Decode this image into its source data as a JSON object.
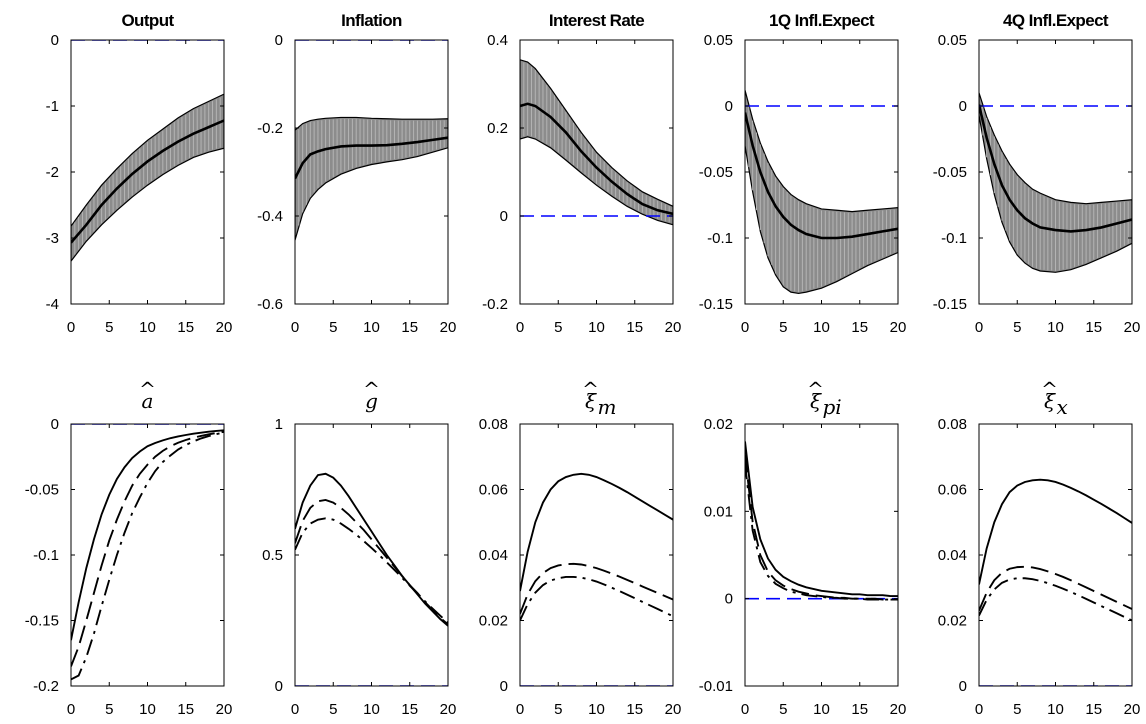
{
  "colors": {
    "band": "#8c8c8c",
    "median": "#000000",
    "zero_line": "#0000ff",
    "background": "#ffffff"
  },
  "chart_data": [
    {
      "type": "area",
      "title": "Output",
      "xlabel": "",
      "ylabel": "",
      "xlim": [
        0,
        20
      ],
      "ylim": [
        -4,
        0
      ],
      "xticks": [
        "0",
        "5",
        "10",
        "15",
        "20"
      ],
      "yticks": [
        "-4",
        "-3",
        "-2",
        "-1",
        "0"
      ],
      "zero_line": true,
      "grid": false,
      "x": [
        0,
        2,
        4,
        6,
        8,
        10,
        12,
        14,
        16,
        18,
        20
      ],
      "band_lower": [
        -3.35,
        -3.05,
        -2.8,
        -2.58,
        -2.38,
        -2.2,
        -2.04,
        -1.9,
        -1.78,
        -1.7,
        -1.64
      ],
      "band_upper": [
        -2.82,
        -2.5,
        -2.2,
        -1.95,
        -1.72,
        -1.52,
        -1.35,
        -1.18,
        -1.04,
        -0.93,
        -0.82
      ],
      "median": [
        -3.07,
        -2.8,
        -2.5,
        -2.25,
        -2.03,
        -1.84,
        -1.68,
        -1.54,
        -1.42,
        -1.32,
        -1.22
      ]
    },
    {
      "type": "area",
      "title": "Inflation",
      "xlabel": "",
      "ylabel": "",
      "xlim": [
        0,
        20
      ],
      "ylim": [
        -0.6,
        0
      ],
      "xticks": [
        "0",
        "5",
        "10",
        "15",
        "20"
      ],
      "yticks": [
        "-0.6",
        "-0.4",
        "-0.2",
        "0"
      ],
      "zero_line": true,
      "grid": false,
      "x": [
        0,
        1,
        2,
        3,
        4,
        6,
        8,
        10,
        12,
        14,
        16,
        18,
        20
      ],
      "band_lower": [
        -0.455,
        -0.395,
        -0.36,
        -0.34,
        -0.325,
        -0.305,
        -0.292,
        -0.283,
        -0.277,
        -0.272,
        -0.265,
        -0.255,
        -0.245
      ],
      "band_upper": [
        -0.205,
        -0.19,
        -0.183,
        -0.18,
        -0.178,
        -0.176,
        -0.176,
        -0.178,
        -0.179,
        -0.18,
        -0.18,
        -0.18,
        -0.179
      ],
      "median": [
        -0.315,
        -0.28,
        -0.26,
        -0.253,
        -0.248,
        -0.242,
        -0.24,
        -0.24,
        -0.239,
        -0.236,
        -0.232,
        -0.227,
        -0.222
      ]
    },
    {
      "type": "area",
      "title": "Interest Rate",
      "xlabel": "",
      "ylabel": "",
      "xlim": [
        0,
        20
      ],
      "ylim": [
        -0.2,
        0.4
      ],
      "xticks": [
        "0",
        "5",
        "10",
        "15",
        "20"
      ],
      "yticks": [
        "-0.2",
        "0",
        "0.2",
        "0.4"
      ],
      "zero_line": true,
      "grid": false,
      "x": [
        0,
        1,
        2,
        4,
        6,
        8,
        10,
        12,
        14,
        16,
        18,
        20
      ],
      "band_lower": [
        0.175,
        0.18,
        0.175,
        0.155,
        0.127,
        0.098,
        0.07,
        0.045,
        0.022,
        0.004,
        -0.01,
        -0.02
      ],
      "band_upper": [
        0.355,
        0.35,
        0.335,
        0.29,
        0.24,
        0.19,
        0.145,
        0.11,
        0.08,
        0.055,
        0.038,
        0.022
      ],
      "median": [
        0.25,
        0.255,
        0.25,
        0.225,
        0.19,
        0.147,
        0.11,
        0.078,
        0.05,
        0.027,
        0.013,
        0.005
      ]
    },
    {
      "type": "area",
      "title": "1Q Infl.Expect",
      "xlabel": "",
      "ylabel": "",
      "xlim": [
        0,
        20
      ],
      "ylim": [
        -0.15,
        0.05
      ],
      "xticks": [
        "0",
        "5",
        "10",
        "15",
        "20"
      ],
      "yticks": [
        "-0.15",
        "-0.1",
        "-0.05",
        "0",
        "0.05"
      ],
      "zero_line": true,
      "grid": false,
      "x": [
        0,
        1,
        2,
        3,
        4,
        5,
        6,
        7,
        8,
        10,
        12,
        14,
        16,
        18,
        20
      ],
      "band_lower": [
        -0.03,
        -0.065,
        -0.095,
        -0.115,
        -0.128,
        -0.137,
        -0.141,
        -0.142,
        -0.141,
        -0.138,
        -0.133,
        -0.127,
        -0.121,
        -0.116,
        -0.111
      ],
      "band_upper": [
        0.012,
        -0.01,
        -0.028,
        -0.042,
        -0.053,
        -0.061,
        -0.067,
        -0.071,
        -0.074,
        -0.078,
        -0.079,
        -0.08,
        -0.079,
        -0.078,
        -0.077
      ],
      "median": [
        -0.005,
        -0.03,
        -0.05,
        -0.065,
        -0.076,
        -0.084,
        -0.09,
        -0.094,
        -0.097,
        -0.1,
        -0.1,
        -0.099,
        -0.097,
        -0.095,
        -0.093
      ]
    },
    {
      "type": "area",
      "title": "4Q Infl.Expect",
      "xlabel": "",
      "ylabel": "",
      "xlim": [
        0,
        20
      ],
      "ylim": [
        -0.15,
        0.05
      ],
      "xticks": [
        "0",
        "5",
        "10",
        "15",
        "20"
      ],
      "yticks": [
        "-0.15",
        "-0.1",
        "-0.05",
        "0",
        "0.05"
      ],
      "zero_line": true,
      "grid": false,
      "x": [
        0,
        1,
        2,
        3,
        4,
        5,
        6,
        7,
        8,
        10,
        12,
        14,
        16,
        18,
        20
      ],
      "band_lower": [
        -0.007,
        -0.04,
        -0.067,
        -0.088,
        -0.103,
        -0.113,
        -0.119,
        -0.123,
        -0.125,
        -0.126,
        -0.124,
        -0.12,
        -0.115,
        -0.11,
        -0.104
      ],
      "band_upper": [
        0.01,
        -0.008,
        -0.022,
        -0.034,
        -0.044,
        -0.052,
        -0.058,
        -0.063,
        -0.066,
        -0.071,
        -0.073,
        -0.074,
        -0.073,
        -0.072,
        -0.071
      ],
      "median": [
        0.001,
        -0.024,
        -0.044,
        -0.06,
        -0.071,
        -0.079,
        -0.085,
        -0.089,
        -0.092,
        -0.094,
        -0.095,
        -0.094,
        -0.092,
        -0.089,
        -0.086
      ]
    },
    {
      "type": "line",
      "title": "a",
      "title_hat": true,
      "title_sub": "",
      "xlabel": "",
      "ylabel": "",
      "xlim": [
        0,
        20
      ],
      "ylim": [
        -0.2,
        0
      ],
      "xticks": [
        "0",
        "5",
        "10",
        "15",
        "20"
      ],
      "yticks": [
        "-0.2",
        "-0.15",
        "-0.1",
        "-0.05",
        "0"
      ],
      "zero_line": true,
      "grid": false,
      "x": [
        0,
        1,
        2,
        3,
        4,
        5,
        6,
        7,
        8,
        9,
        10,
        11,
        12,
        13,
        14,
        15,
        16,
        17,
        18,
        19,
        20
      ],
      "series": [
        {
          "style": "solid",
          "values": [
            -0.165,
            -0.136,
            -0.11,
            -0.088,
            -0.069,
            -0.054,
            -0.042,
            -0.033,
            -0.026,
            -0.021,
            -0.017,
            -0.0145,
            -0.0125,
            -0.0108,
            -0.0095,
            -0.0084,
            -0.0074,
            -0.0066,
            -0.0059,
            -0.0053,
            -0.0048
          ]
        },
        {
          "style": "dashed",
          "values": [
            -0.185,
            -0.17,
            -0.15,
            -0.129,
            -0.108,
            -0.089,
            -0.073,
            -0.059,
            -0.047,
            -0.038,
            -0.031,
            -0.025,
            -0.0205,
            -0.017,
            -0.0143,
            -0.0122,
            -0.0105,
            -0.0091,
            -0.0079,
            -0.0069,
            -0.006
          ]
        },
        {
          "style": "dashdot",
          "values": [
            -0.195,
            -0.192,
            -0.178,
            -0.16,
            -0.139,
            -0.119,
            -0.1,
            -0.083,
            -0.068,
            -0.056,
            -0.045,
            -0.036,
            -0.029,
            -0.024,
            -0.0195,
            -0.016,
            -0.0133,
            -0.011,
            -0.0092,
            -0.0077,
            -0.0065
          ]
        }
      ]
    },
    {
      "type": "line",
      "title": "g",
      "title_hat": true,
      "title_sub": "",
      "xlabel": "",
      "ylabel": "",
      "xlim": [
        0,
        20
      ],
      "ylim": [
        0,
        1
      ],
      "xticks": [
        "0",
        "5",
        "10",
        "15",
        "20"
      ],
      "yticks": [
        "0",
        "0.5",
        "1"
      ],
      "zero_line": true,
      "grid": false,
      "x": [
        0,
        1,
        2,
        3,
        4,
        5,
        6,
        7,
        8,
        9,
        10,
        11,
        12,
        13,
        14,
        15,
        16,
        17,
        18,
        19,
        20
      ],
      "series": [
        {
          "style": "solid",
          "values": [
            0.6,
            0.7,
            0.765,
            0.805,
            0.81,
            0.795,
            0.765,
            0.725,
            0.68,
            0.635,
            0.59,
            0.545,
            0.5,
            0.46,
            0.42,
            0.385,
            0.35,
            0.315,
            0.285,
            0.255,
            0.23
          ]
        },
        {
          "style": "dashed",
          "values": [
            0.545,
            0.63,
            0.68,
            0.705,
            0.71,
            0.7,
            0.68,
            0.655,
            0.625,
            0.595,
            0.56,
            0.525,
            0.49,
            0.455,
            0.42,
            0.385,
            0.355,
            0.32,
            0.29,
            0.26,
            0.235
          ]
        },
        {
          "style": "dashdot",
          "values": [
            0.52,
            0.585,
            0.62,
            0.635,
            0.64,
            0.635,
            0.62,
            0.6,
            0.578,
            0.553,
            0.527,
            0.5,
            0.472,
            0.443,
            0.413,
            0.383,
            0.353,
            0.323,
            0.295,
            0.268,
            0.242
          ]
        }
      ]
    },
    {
      "type": "line",
      "title": "ξ",
      "title_hat": true,
      "title_sub": "m",
      "xlabel": "",
      "ylabel": "",
      "xlim": [
        0,
        20
      ],
      "ylim": [
        0,
        0.08
      ],
      "xticks": [
        "0",
        "5",
        "10",
        "15",
        "20"
      ],
      "yticks": [
        "0",
        "0.02",
        "0.04",
        "0.06",
        "0.08"
      ],
      "zero_line": true,
      "grid": false,
      "x": [
        0,
        1,
        2,
        3,
        4,
        5,
        6,
        7,
        8,
        9,
        10,
        11,
        12,
        13,
        14,
        15,
        16,
        17,
        18,
        19,
        20
      ],
      "series": [
        {
          "style": "solid",
          "values": [
            0.029,
            0.041,
            0.05,
            0.056,
            0.06,
            0.0625,
            0.0638,
            0.0645,
            0.0648,
            0.0645,
            0.0638,
            0.0628,
            0.0617,
            0.0605,
            0.0592,
            0.0578,
            0.0564,
            0.055,
            0.0536,
            0.0522,
            0.0508
          ]
        },
        {
          "style": "dashed",
          "values": [
            0.022,
            0.028,
            0.032,
            0.0345,
            0.036,
            0.0368,
            0.0372,
            0.0373,
            0.0371,
            0.0366,
            0.036,
            0.0352,
            0.0343,
            0.0334,
            0.0324,
            0.0314,
            0.0304,
            0.0294,
            0.0284,
            0.0274,
            0.0264
          ]
        },
        {
          "style": "dashdot",
          "values": [
            0.02,
            0.025,
            0.0285,
            0.0308,
            0.0322,
            0.0329,
            0.0333,
            0.0333,
            0.0331,
            0.0326,
            0.0319,
            0.031,
            0.03,
            0.029,
            0.0279,
            0.0268,
            0.0257,
            0.0246,
            0.0235,
            0.0224,
            0.0213
          ]
        }
      ]
    },
    {
      "type": "line",
      "title": "ξ",
      "title_hat": true,
      "title_sub": "pi",
      "xlabel": "",
      "ylabel": "",
      "xlim": [
        0,
        20
      ],
      "ylim": [
        -0.01,
        0.02
      ],
      "xticks": [
        "0",
        "5",
        "10",
        "15",
        "20"
      ],
      "yticks": [
        "-0.01",
        "0",
        "0.01",
        "0.02"
      ],
      "zero_line": true,
      "grid": false,
      "x": [
        0,
        1,
        2,
        3,
        4,
        5,
        6,
        7,
        8,
        9,
        10,
        11,
        12,
        13,
        14,
        15,
        16,
        17,
        18,
        19,
        20
      ],
      "series": [
        {
          "style": "solid",
          "values": [
            0.018,
            0.0105,
            0.0068,
            0.0046,
            0.0033,
            0.0025,
            0.002,
            0.0016,
            0.0013,
            0.0011,
            0.0009,
            0.0008,
            0.0007,
            0.0006,
            0.0005,
            0.0005,
            0.0004,
            0.0004,
            0.0004,
            0.0003,
            0.0003
          ]
        },
        {
          "style": "dashed",
          "values": [
            0.0165,
            0.0088,
            0.005,
            0.0031,
            0.0021,
            0.0015,
            0.0011,
            0.0008,
            0.0006,
            0.0004,
            0.0003,
            0.0002,
            0.0001,
            0.0001,
            0.0,
            0.0,
            0.0,
            0.0,
            -0.0001,
            -0.0001,
            -0.0001
          ]
        },
        {
          "style": "dashdot",
          "values": [
            0.0155,
            0.0078,
            0.0042,
            0.0026,
            0.0017,
            0.0012,
            0.0008,
            0.0006,
            0.0004,
            0.0003,
            0.0002,
            0.0001,
            0.0001,
            0.0,
            0.0,
            0.0,
            -0.0001,
            -0.0001,
            -0.0001,
            -0.0001,
            -0.0001
          ]
        }
      ]
    },
    {
      "type": "line",
      "title": "ξ",
      "title_hat": true,
      "title_sub": "x",
      "xlabel": "",
      "ylabel": "",
      "xlim": [
        0,
        20
      ],
      "ylim": [
        0,
        0.08
      ],
      "xticks": [
        "0",
        "5",
        "10",
        "15",
        "20"
      ],
      "yticks": [
        "0",
        "0.02",
        "0.04",
        "0.06",
        "0.08"
      ],
      "zero_line": true,
      "grid": false,
      "x": [
        0,
        1,
        2,
        3,
        4,
        5,
        6,
        7,
        8,
        9,
        10,
        11,
        12,
        13,
        14,
        15,
        16,
        17,
        18,
        19,
        20
      ],
      "series": [
        {
          "style": "solid",
          "values": [
            0.031,
            0.042,
            0.05,
            0.0555,
            0.0592,
            0.0612,
            0.0623,
            0.0628,
            0.063,
            0.0628,
            0.0623,
            0.0615,
            0.0605,
            0.0594,
            0.0582,
            0.0569,
            0.0556,
            0.0542,
            0.0528,
            0.0513,
            0.0498
          ]
        },
        {
          "style": "dashed",
          "values": [
            0.023,
            0.0285,
            0.0323,
            0.0346,
            0.0358,
            0.0363,
            0.0364,
            0.0362,
            0.0357,
            0.035,
            0.0342,
            0.0333,
            0.0323,
            0.0312,
            0.0301,
            0.029,
            0.0279,
            0.0268,
            0.0257,
            0.0246,
            0.0235
          ]
        },
        {
          "style": "dashdot",
          "values": [
            0.0215,
            0.0263,
            0.0295,
            0.0315,
            0.0325,
            0.0329,
            0.0329,
            0.0326,
            0.0321,
            0.0314,
            0.0306,
            0.0297,
            0.0287,
            0.0277,
            0.0266,
            0.0255,
            0.0244,
            0.0233,
            0.0222,
            0.0211,
            0.02
          ]
        }
      ]
    }
  ]
}
